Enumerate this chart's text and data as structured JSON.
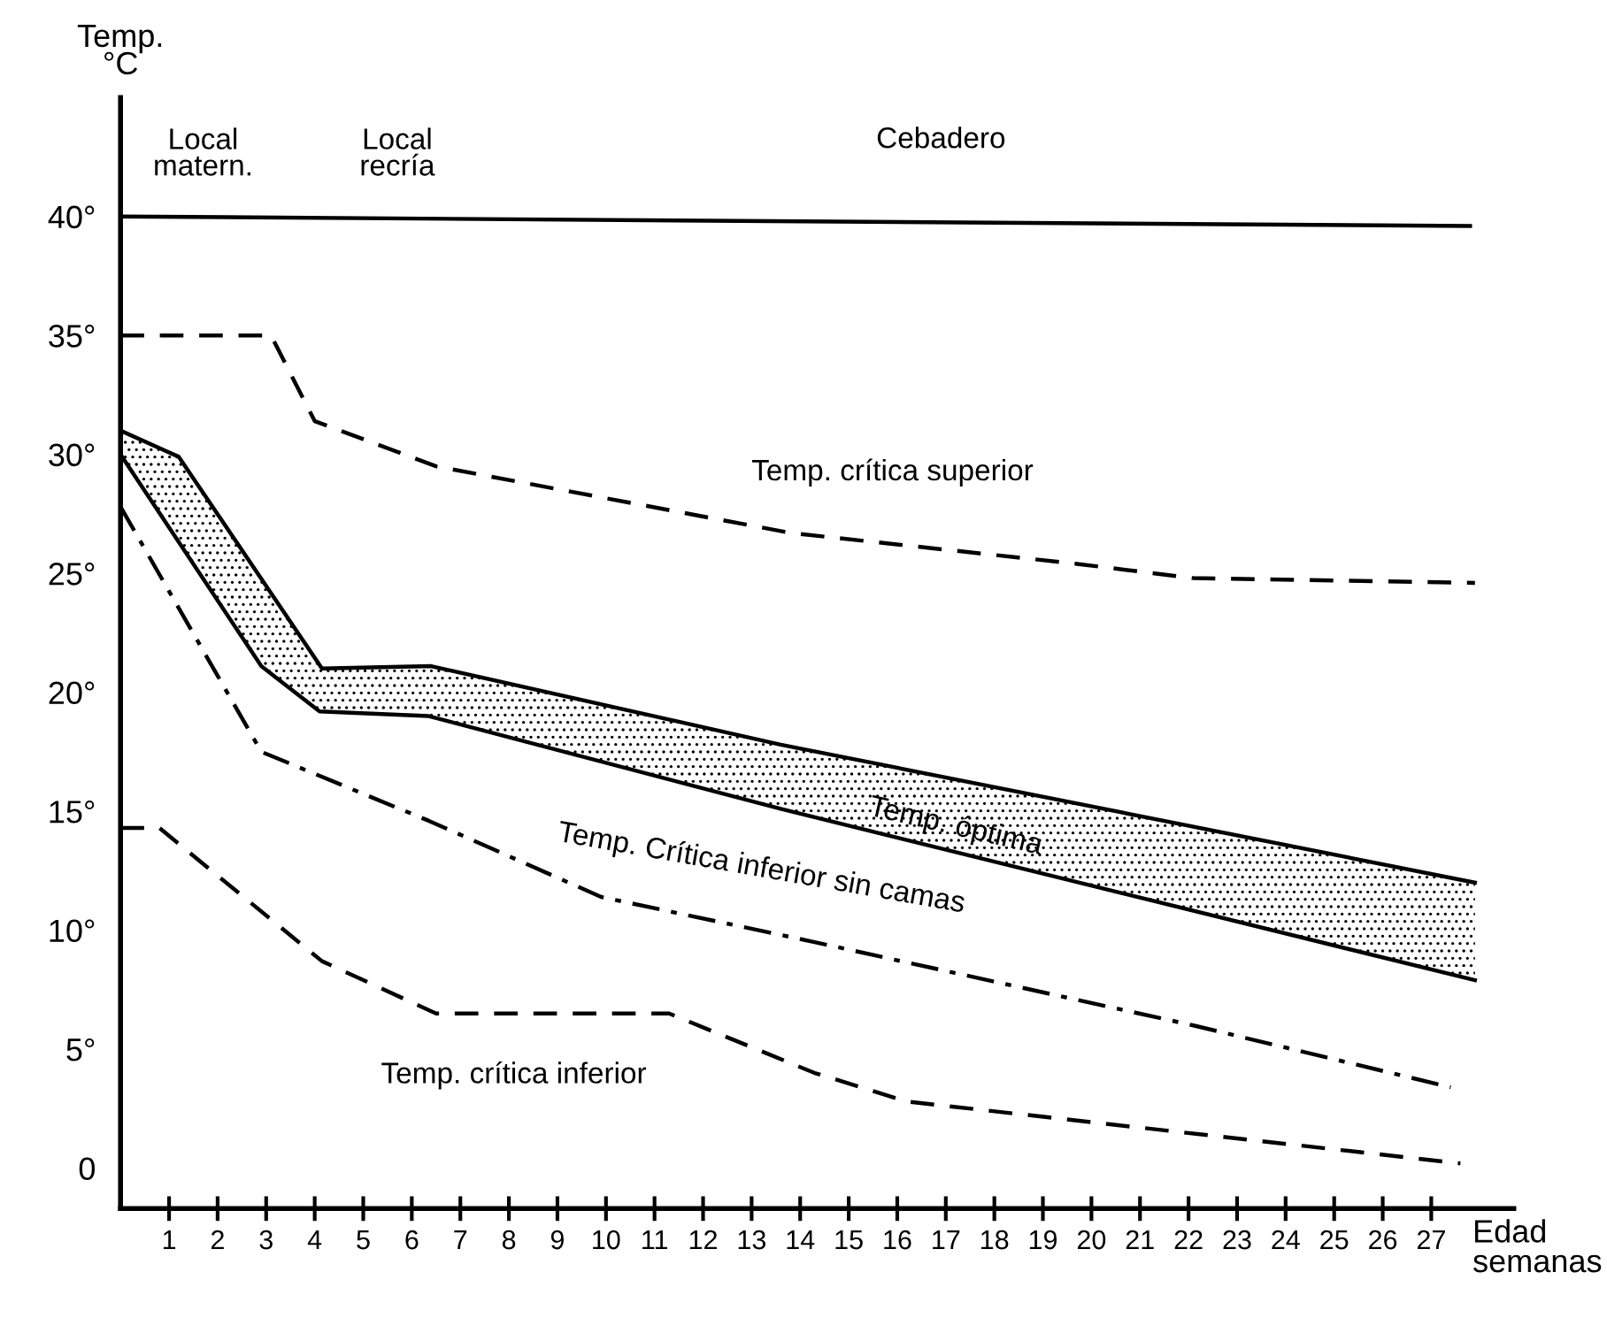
{
  "chart_data": {
    "type": "line",
    "xlabel": "Edad\nsemanas",
    "ylabel": "Temp.\n°C",
    "xlim": [
      0,
      28.7
    ],
    "ylim": [
      -1.7,
      45
    ],
    "xticks": [
      1,
      2,
      3,
      4,
      5,
      6,
      7,
      8,
      9,
      10,
      11,
      12,
      13,
      14,
      15,
      16,
      17,
      18,
      19,
      20,
      21,
      22,
      23,
      24,
      25,
      26,
      27
    ],
    "yticks": [
      {
        "value": 0,
        "label": "0"
      },
      {
        "value": 5,
        "label": "5°"
      },
      {
        "value": 10,
        "label": "10°"
      },
      {
        "value": 15,
        "label": "15°"
      },
      {
        "value": 20,
        "label": "20°"
      },
      {
        "value": 25,
        "label": "25°"
      },
      {
        "value": 30,
        "label": "30°"
      },
      {
        "value": 35,
        "label": "35°"
      },
      {
        "value": 40,
        "label": "40°"
      }
    ],
    "grid": false,
    "tick_labels": true,
    "annotations": [
      "Local\nmatern.",
      "Local\nrecría",
      "Cebadero"
    ],
    "series": [
      {
        "color": "#000000",
        "line_style": "solid",
        "x": [
          0,
          27.8
        ],
        "values": [
          40,
          39.6
        ]
      },
      {
        "name": "Temp. crítica superior",
        "color": "#000000",
        "line_style": "dashed",
        "x": [
          0,
          3.1,
          4.0,
          6.5,
          13.8,
          19.7,
          22.1,
          27.9
        ],
        "values": [
          35,
          35,
          31.4,
          29.5,
          26.7,
          25.4,
          24.8,
          24.6
        ]
      },
      {
        "name": "Temp. óptima",
        "color": "#000000",
        "line_style": "solid",
        "x": [
          0,
          1.2,
          4.15,
          6.4,
          13.6,
          27.9
        ],
        "values": [
          31.0,
          29.9,
          21.0,
          21.1,
          17.8,
          12.0
        ]
      },
      {
        "color": "#000000",
        "line_style": "solid",
        "x": [
          0,
          2.9,
          4.1,
          6.35,
          13.6,
          27.9
        ],
        "values": [
          30.0,
          21.1,
          19.2,
          19.0,
          15.1,
          7.9
        ]
      },
      {
        "name": "Temp. Crítica inferior sin camas",
        "color": "#000000",
        "line_style": "dashdot",
        "x": [
          0,
          2.9,
          6.35,
          9.9,
          14.3,
          22.1,
          27.4
        ],
        "values": [
          27.8,
          17.5,
          14.6,
          11.4,
          9.5,
          6.0,
          3.4
        ]
      },
      {
        "name": "Temp. crítica inferior",
        "color": "#000000",
        "line_style": "dashed",
        "x": [
          0,
          0.8,
          4.15,
          6.5,
          11.3,
          14.3,
          16.2,
          27.6
        ],
        "values": [
          14.3,
          14.3,
          8.7,
          6.5,
          6.5,
          4.0,
          2.8,
          0.2
        ]
      }
    ]
  }
}
